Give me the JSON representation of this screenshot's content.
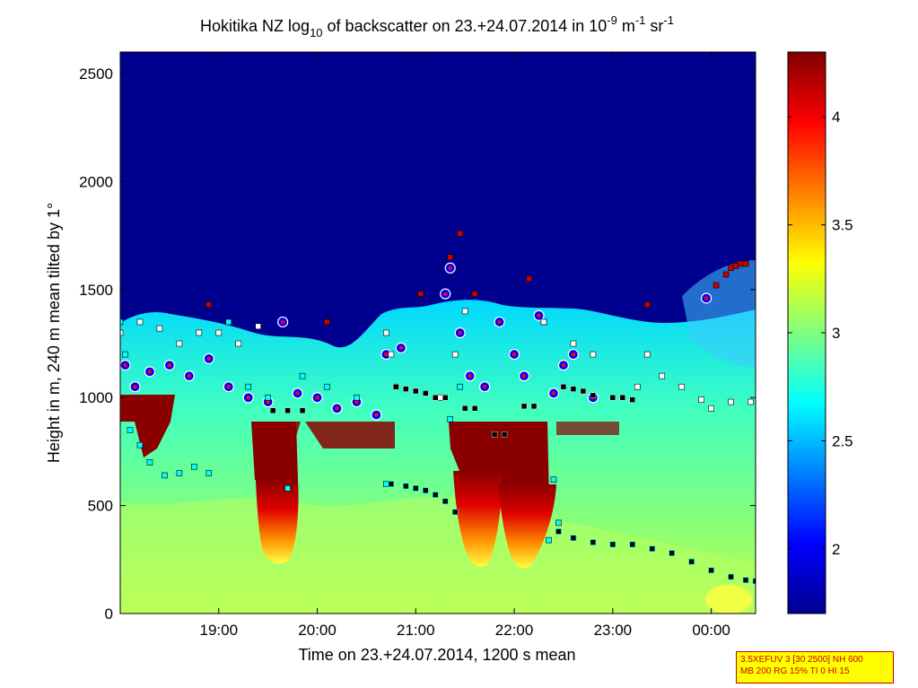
{
  "chart_data": {
    "type": "heatmap",
    "title": {
      "prefix": "Hokitika NZ log",
      "sub": "10",
      "middle": " of backscatter on 23.+24.07.2014 in 10",
      "sup1": "-9",
      "unit1": " m",
      "sup2": "-1",
      "unit2": " sr",
      "sup3": "-1"
    },
    "xlabel": "Time on 23.+24.07.2014, 1200 s mean",
    "ylabel": "Height in m, 240 m mean tilted by 1°",
    "x_ticks": [
      "19:00",
      "20:00",
      "21:00",
      "22:00",
      "23:00",
      "00:00"
    ],
    "x_tick_hours": [
      19,
      20,
      21,
      22,
      23,
      24
    ],
    "x_range_hours": [
      18.0,
      24.45
    ],
    "y_ticks": [
      0,
      500,
      1000,
      1500,
      2000,
      2500
    ],
    "y_range": [
      0,
      2600
    ],
    "colorbar": {
      "range": [
        1.7,
        4.3
      ],
      "ticks": [
        2,
        2.5,
        3,
        3.5,
        4
      ],
      "tick_labels": [
        "2",
        "2.5",
        "3",
        "3.5",
        "4"
      ],
      "colormap": "jet"
    },
    "colors": {
      "low": "#00008f",
      "mid": "#00ffff",
      "high": "#800000",
      "marker_cloud": "#ff0000",
      "marker_edge": "#0000ff",
      "marker_cyan": "#00ffff",
      "marker_white": "#ffffff",
      "marker_black": "#000000"
    },
    "series": [
      {
        "marker": "dark-red-square",
        "x": [
          18.9,
          20.1,
          21.05,
          21.35,
          21.45,
          21.6,
          22.15,
          22.3,
          23.35,
          23.95,
          24.05,
          24.15,
          24.2,
          24.25,
          24.3,
          24.35
        ],
        "y": [
          1430,
          1350,
          1480,
          1650,
          1760,
          1480,
          1550,
          1350,
          1430,
          1460,
          1520,
          1570,
          1600,
          1610,
          1620,
          1620
        ]
      },
      {
        "marker": "red-dot-blue-ring",
        "x": [
          18.05,
          18.15,
          18.3,
          18.5,
          18.7,
          18.9,
          19.1,
          19.3,
          19.5,
          19.65,
          19.8,
          20.0,
          20.2,
          20.4,
          20.6,
          20.7,
          20.85,
          21.3,
          21.35,
          21.45,
          21.55,
          21.7,
          21.85,
          22.0,
          22.1,
          22.25,
          22.4,
          22.5,
          22.6,
          22.8,
          23.95
        ],
        "y": [
          1150,
          1050,
          1120,
          1150,
          1100,
          1180,
          1050,
          1000,
          980,
          1350,
          1020,
          1000,
          950,
          980,
          920,
          1200,
          1230,
          1480,
          1600,
          1300,
          1100,
          1050,
          1350,
          1200,
          1100,
          1380,
          1020,
          1150,
          1200,
          1000,
          1460
        ]
      },
      {
        "marker": "cyan-square",
        "x": [
          18.0,
          18.05,
          18.1,
          18.2,
          18.3,
          18.45,
          18.6,
          18.75,
          18.9,
          19.1,
          19.3,
          19.5,
          19.7,
          19.85,
          20.1,
          20.4,
          20.7,
          20.8,
          21.35,
          21.45,
          22.35,
          22.4,
          22.45
        ],
        "y": [
          1350,
          1200,
          850,
          780,
          700,
          640,
          650,
          680,
          650,
          1350,
          1050,
          1000,
          580,
          1100,
          1050,
          1000,
          600,
          1050,
          900,
          1050,
          340,
          620,
          420
        ]
      },
      {
        "marker": "white-square",
        "x": [
          18.0,
          18.2,
          18.4,
          18.6,
          18.8,
          19.0,
          19.2,
          19.4,
          20.7,
          20.75,
          21.25,
          21.4,
          21.5,
          22.3,
          22.6,
          22.8,
          23.25,
          23.35,
          23.5,
          23.7,
          23.9,
          24.0,
          24.2,
          24.4
        ],
        "y": [
          1300,
          1350,
          1320,
          1250,
          1300,
          1300,
          1250,
          1330,
          1300,
          1200,
          1000,
          1200,
          1400,
          1350,
          1250,
          1200,
          1050,
          1200,
          1100,
          1050,
          990,
          950,
          980,
          980
        ]
      },
      {
        "marker": "black-square",
        "x": [
          19.55,
          19.7,
          19.85,
          20.8,
          20.9,
          21.0,
          21.1,
          21.2,
          21.3,
          21.5,
          21.6,
          21.8,
          21.9,
          22.1,
          22.2,
          22.5,
          22.6,
          22.7,
          22.8,
          23.0,
          23.1,
          23.2
        ],
        "y": [
          940,
          940,
          940,
          1050,
          1040,
          1030,
          1020,
          1000,
          1000,
          950,
          950,
          830,
          830,
          960,
          960,
          1050,
          1040,
          1030,
          1010,
          1000,
          1000,
          990
        ]
      },
      {
        "marker": "black-dot-trail",
        "x": [
          20.75,
          20.9,
          21.0,
          21.1,
          21.2,
          21.3,
          21.4,
          22.45,
          22.6,
          22.8,
          23.0,
          23.2,
          23.4,
          23.6,
          23.8,
          24.0,
          24.2,
          24.35,
          24.45
        ],
        "y": [
          600,
          590,
          580,
          570,
          550,
          520,
          470,
          380,
          350,
          330,
          320,
          320,
          300,
          280,
          240,
          200,
          170,
          155,
          150
        ]
      }
    ]
  },
  "info_box": {
    "line1": "3.5XEFUV 3 [30 2500] NH 600",
    "line2": "MB 200 RG 15% TI 0 HI 15"
  }
}
